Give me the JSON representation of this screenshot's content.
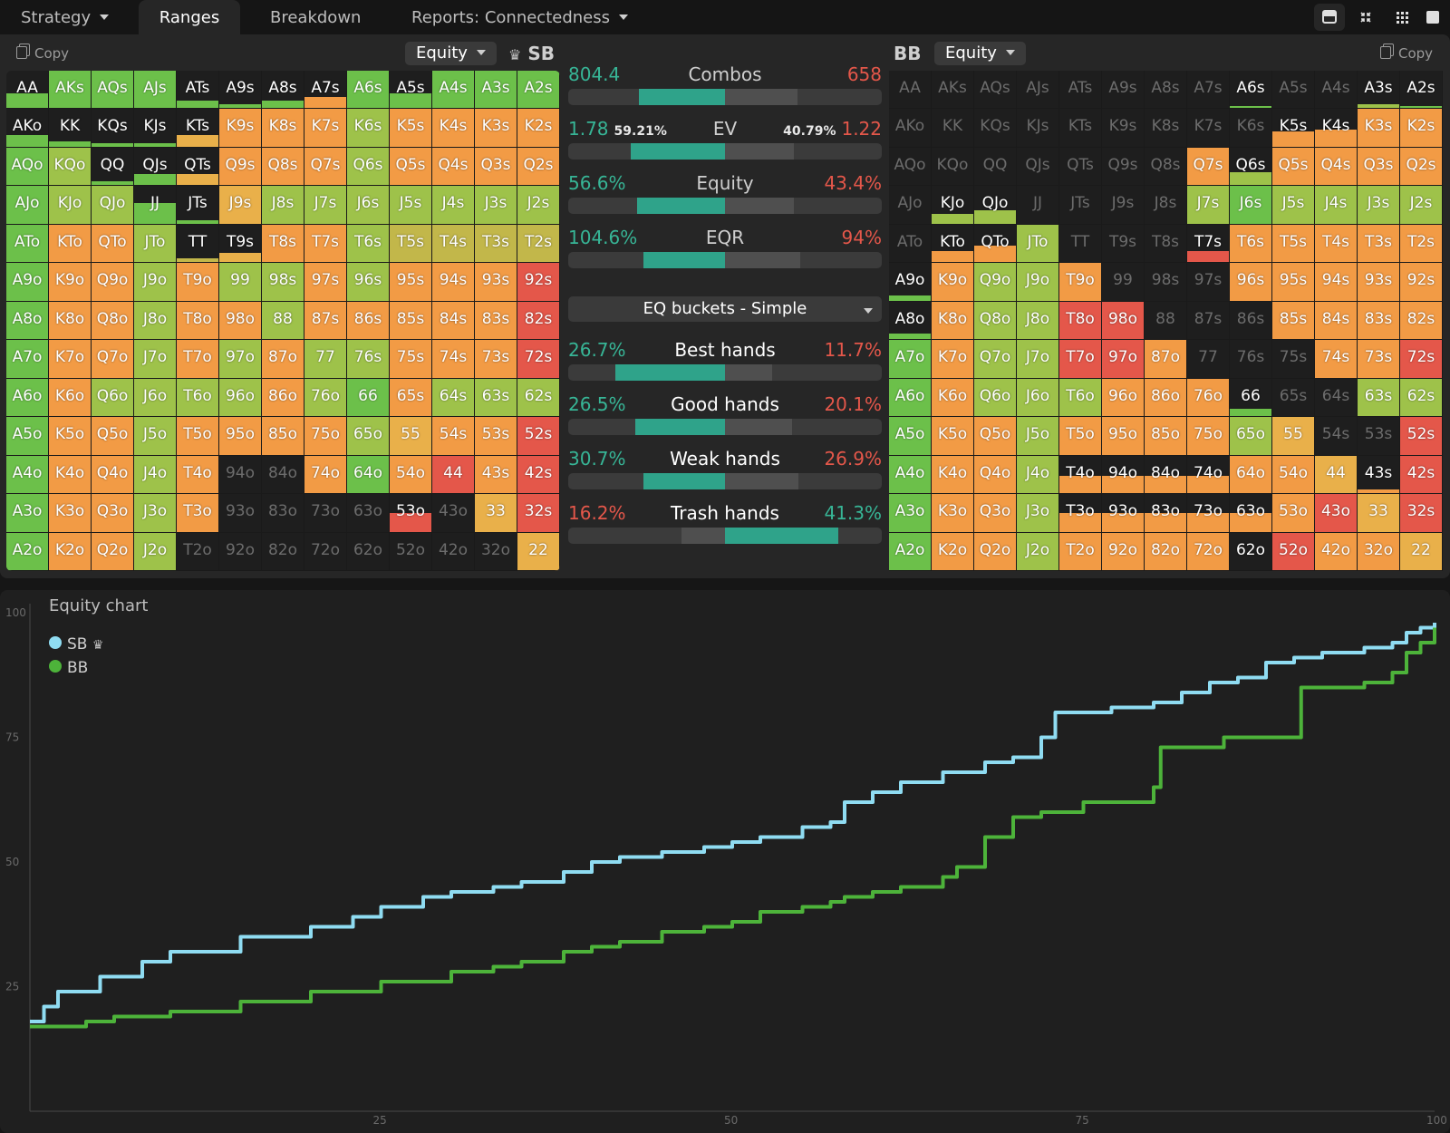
{
  "tabs": [
    {
      "label": "Strategy",
      "dropdown": true
    },
    {
      "label": "Ranges",
      "active": true
    },
    {
      "label": "Breakdown"
    },
    {
      "label": "Reports: Connectedness",
      "dropdown": true
    }
  ],
  "layout_icons": [
    "single-panel-icon",
    "split-panel-icon",
    "grid-view-icon",
    "fullscreen-icon"
  ],
  "left_panel": {
    "copy_label": "Copy",
    "dropdown": "Equity",
    "player": "SB",
    "crown": "♛"
  },
  "right_panel": {
    "copy_label": "Copy",
    "dropdown": "Equity",
    "player": "BB"
  },
  "colors": {
    "green": "#6cc04a",
    "lime": "#9ec24a",
    "olive": "#c2b74a",
    "yellow": "#e9b04a",
    "orange": "#f29b45",
    "deep_orange": "#ee7a3f",
    "red": "#e4574a",
    "teal": "#2fa38a",
    "sb_line": "#8fdcf2",
    "bb_line": "#4db33a"
  },
  "hands": [
    [
      "AA",
      "AKs",
      "AQs",
      "AJs",
      "ATs",
      "A9s",
      "A8s",
      "A7s",
      "A6s",
      "A5s",
      "A4s",
      "A3s",
      "A2s"
    ],
    [
      "AKo",
      "KK",
      "KQs",
      "KJs",
      "KTs",
      "K9s",
      "K8s",
      "K7s",
      "K6s",
      "K5s",
      "K4s",
      "K3s",
      "K2s"
    ],
    [
      "AQo",
      "KQo",
      "QQ",
      "QJs",
      "QTs",
      "Q9s",
      "Q8s",
      "Q7s",
      "Q6s",
      "Q5s",
      "Q4s",
      "Q3s",
      "Q2s"
    ],
    [
      "AJo",
      "KJo",
      "QJo",
      "JJ",
      "JTs",
      "J9s",
      "J8s",
      "J7s",
      "J6s",
      "J5s",
      "J4s",
      "J3s",
      "J2s"
    ],
    [
      "ATo",
      "KTo",
      "QTo",
      "JTo",
      "TT",
      "T9s",
      "T8s",
      "T7s",
      "T6s",
      "T5s",
      "T4s",
      "T3s",
      "T2s"
    ],
    [
      "A9o",
      "K9o",
      "Q9o",
      "J9o",
      "T9o",
      "99",
      "98s",
      "97s",
      "96s",
      "95s",
      "94s",
      "93s",
      "92s"
    ],
    [
      "A8o",
      "K8o",
      "Q8o",
      "J8o",
      "T8o",
      "98o",
      "88",
      "87s",
      "86s",
      "85s",
      "84s",
      "83s",
      "82s"
    ],
    [
      "A7o",
      "K7o",
      "Q7o",
      "J7o",
      "T7o",
      "97o",
      "87o",
      "77",
      "76s",
      "75s",
      "74s",
      "73s",
      "72s"
    ],
    [
      "A6o",
      "K6o",
      "Q6o",
      "J6o",
      "T6o",
      "96o",
      "86o",
      "76o",
      "66",
      "65s",
      "64s",
      "63s",
      "62s"
    ],
    [
      "A5o",
      "K5o",
      "Q5o",
      "J5o",
      "T5o",
      "95o",
      "85o",
      "75o",
      "65o",
      "55",
      "54s",
      "53s",
      "52s"
    ],
    [
      "A4o",
      "K4o",
      "Q4o",
      "J4o",
      "T4o",
      "94o",
      "84o",
      "74o",
      "64o",
      "54o",
      "44",
      "43s",
      "42s"
    ],
    [
      "A3o",
      "K3o",
      "Q3o",
      "J3o",
      "T3o",
      "93o",
      "83o",
      "73o",
      "63o",
      "53o",
      "43o",
      "33",
      "32s"
    ],
    [
      "A2o",
      "K2o",
      "Q2o",
      "J2o",
      "T2o",
      "92o",
      "82o",
      "72o",
      "62o",
      "52o",
      "42o",
      "32o",
      "22"
    ]
  ],
  "sb_grid": {
    "colors": [
      "GGGGDDDDGGGGG",
      "GDDDYOOOLOOOO",
      "GLDDYOOOLOOOO",
      "GLLGDYLLLLLLL",
      "GOOLDDOOLDDDD",
      "GOOLOLLOLOOOR",
      "GOOLOOLOOOOOR",
      "GOOLOLOLLOOOR",
      "GOLLLLOLGOLLL",
      "GOOLOOOOLYOOR",
      "GOOLODDODOROR",
      "GOOLODDDDRDYR",
      "GOOLDDDDDDDDY"
    ],
    "fills": [
      [
        0.4,
        1,
        1,
        1,
        0.2,
        0.1,
        0.2,
        0.3,
        1,
        0.4,
        1,
        1,
        1
      ],
      [
        0.3,
        0.15,
        0.1,
        0.1,
        0.3,
        1,
        1,
        1,
        1,
        1,
        1,
        1,
        1
      ],
      [
        1,
        1,
        0.1,
        0.3,
        0.3,
        1,
        1,
        1,
        1,
        1,
        1,
        1,
        1
      ],
      [
        1,
        1,
        1,
        0.55,
        0.1,
        1,
        1,
        1,
        1,
        1,
        1,
        1,
        1
      ],
      [
        1,
        1,
        1,
        1,
        0.1,
        0.25,
        1,
        1,
        1,
        1,
        1,
        1,
        1
      ],
      [
        1,
        1,
        1,
        1,
        1,
        1,
        1,
        1,
        1,
        1,
        1,
        1,
        1
      ],
      [
        1,
        1,
        1,
        1,
        1,
        1,
        1,
        1,
        1,
        1,
        1,
        1,
        1
      ],
      [
        1,
        1,
        1,
        1,
        1,
        1,
        1,
        1,
        1,
        1,
        1,
        1,
        1
      ],
      [
        1,
        1,
        1,
        1,
        1,
        1,
        1,
        1,
        1,
        1,
        1,
        1,
        1
      ],
      [
        1,
        1,
        1,
        1,
        1,
        1,
        1,
        1,
        1,
        1,
        1,
        1,
        1
      ],
      [
        1,
        1,
        1,
        1,
        1,
        0,
        0,
        1,
        1,
        1,
        1,
        1,
        1
      ],
      [
        1,
        1,
        1,
        1,
        1,
        0,
        0,
        0,
        0,
        0.5,
        0,
        1,
        1
      ],
      [
        1,
        1,
        1,
        1,
        0,
        0,
        0,
        0,
        0,
        0,
        0,
        0,
        1
      ]
    ]
  },
  "bb_grid": {
    "colors": [
      "DDDDDDDDDDDLG",
      "DDDDDDDDDOOOO",
      "DDDDDDDOLOOOO",
      "DLLDDDDLGLLLL",
      "DOOLDDDROOOOO",
      "GOLLODDDOOOOO",
      "GOLLRRDDDOOOO",
      "GOLLRRODDDOOR",
      "GOLLLOOOGDDLL",
      "GOOLOOOOLYDDR",
      "GOOLOOOOOOYDR",
      "GOOLOOOOOORYR",
      "GOOLOOOODROOY"
    ],
    "fills": [
      [
        0,
        0,
        0,
        0,
        0,
        0,
        0,
        0,
        0.05,
        0,
        0,
        0.1,
        0.05
      ],
      [
        0,
        0,
        0,
        0,
        0,
        0,
        0,
        0,
        0,
        0.4,
        0.45,
        1,
        1
      ],
      [
        0,
        0,
        0,
        0,
        0,
        0,
        0,
        1,
        0.35,
        1,
        1,
        1,
        1
      ],
      [
        0,
        0.25,
        0.35,
        0,
        0,
        0,
        0,
        1,
        1,
        1,
        1,
        1,
        1
      ],
      [
        0,
        0.3,
        0.45,
        1,
        0,
        0,
        0,
        0.3,
        1,
        1,
        1,
        1,
        1
      ],
      [
        0.15,
        1,
        1,
        1,
        1,
        0,
        0,
        0,
        1,
        1,
        1,
        1,
        1
      ],
      [
        0.15,
        1,
        1,
        1,
        1,
        1,
        0,
        0,
        0,
        1,
        1,
        1,
        1
      ],
      [
        1,
        1,
        1,
        1,
        1,
        1,
        1,
        0,
        0,
        0,
        1,
        1,
        1
      ],
      [
        1,
        1,
        1,
        1,
        1,
        1,
        1,
        1,
        0.2,
        0,
        0,
        1,
        1
      ],
      [
        1,
        1,
        1,
        1,
        1,
        1,
        1,
        1,
        1,
        1,
        0,
        0,
        1
      ],
      [
        1,
        1,
        1,
        1,
        0.45,
        0.45,
        0.45,
        0.45,
        1,
        1,
        1,
        0.1,
        1
      ],
      [
        1,
        1,
        1,
        1,
        0.5,
        0.5,
        0.5,
        0.5,
        0.5,
        1,
        1,
        1,
        1
      ],
      [
        1,
        1,
        1,
        1,
        1,
        1,
        1,
        1,
        1,
        1,
        1,
        1,
        1
      ]
    ]
  },
  "stats": [
    {
      "center": "Combos",
      "left": "804.4",
      "right": "658",
      "fill_from": 0.225,
      "fill_to": 0.5,
      "bg_to": 0.73
    },
    {
      "center": "EV",
      "left": "1.78",
      "left_pct": "59.21%",
      "right": "1.22",
      "right_pct": "40.79%",
      "fill_from": 0.2,
      "fill_to": 0.5,
      "bg_to": 0.72
    },
    {
      "center": "Equity",
      "left": "56.6%",
      "right": "43.4%",
      "fill_from": 0.22,
      "fill_to": 0.5,
      "bg_to": 0.72
    },
    {
      "center": "EQR",
      "left": "104.6%",
      "right": "94%",
      "fill_from": 0.24,
      "fill_to": 0.5,
      "bg_to": 0.74
    }
  ],
  "bucket_dropdown": "EQ buckets - Simple",
  "buckets": [
    {
      "center": "Best hands",
      "left": "26.7%",
      "right": "11.7%",
      "left_color": "teal",
      "right_color": "red",
      "fill_from": 0.15,
      "fill_to": 0.5,
      "bg_to": 0.65
    },
    {
      "center": "Good hands",
      "left": "26.5%",
      "right": "20.1%",
      "left_color": "teal",
      "right_color": "red",
      "fill_from": 0.215,
      "fill_to": 0.5,
      "bg_to": 0.715
    },
    {
      "center": "Weak hands",
      "left": "30.7%",
      "right": "26.9%",
      "left_color": "teal",
      "right_color": "red",
      "fill_from": 0.24,
      "fill_to": 0.5,
      "bg_to": 0.735
    },
    {
      "center": "Trash hands",
      "left": "16.2%",
      "right": "41.3%",
      "left_color": "red",
      "right_color": "teal",
      "fill_from": 0.5,
      "fill_to": 0.86,
      "bg_from": 0.36
    }
  ],
  "chart_data": {
    "type": "line",
    "title": "Equity chart",
    "xlabel": "",
    "ylabel": "",
    "xlim": [
      0,
      100
    ],
    "ylim": [
      0,
      100
    ],
    "x_ticks": [
      25,
      50,
      75,
      100
    ],
    "y_ticks": [
      25,
      50,
      75,
      100
    ],
    "grid": false,
    "legend": "top-left",
    "series": [
      {
        "name": "SB",
        "crown": "♛",
        "color": "#8fdcf2",
        "x": [
          0,
          1,
          2,
          5,
          8,
          10,
          15,
          20,
          23,
          25,
          28,
          30,
          33,
          35,
          38,
          40,
          42,
          45,
          48,
          50,
          52,
          55,
          57,
          58,
          60,
          62,
          65,
          68,
          70,
          72,
          73,
          75,
          77,
          80,
          82,
          84,
          86,
          88,
          90,
          92,
          95,
          97,
          98,
          99,
          100
        ],
        "y": [
          18,
          21,
          24,
          27,
          30,
          32,
          35,
          37,
          39,
          41,
          43,
          44,
          45,
          46,
          48,
          50,
          51,
          52,
          53,
          54,
          55,
          57,
          58,
          62,
          64,
          66,
          68,
          70,
          71,
          75,
          80,
          80,
          81,
          82,
          84,
          86,
          87,
          90,
          91,
          92,
          93,
          94,
          96,
          97,
          98
        ]
      },
      {
        "name": "BB",
        "color": "#4db33a",
        "x": [
          0,
          4,
          6,
          10,
          15,
          20,
          25,
          30,
          33,
          35,
          38,
          40,
          42,
          45,
          48,
          50,
          52,
          55,
          57,
          58,
          60,
          62,
          65,
          66,
          68,
          70,
          72,
          75,
          80,
          80.5,
          85,
          90,
          90.5,
          95,
          97,
          98,
          99,
          100
        ],
        "y": [
          17,
          18,
          19,
          20,
          22,
          24,
          26,
          28,
          29,
          30,
          32,
          33,
          34,
          36,
          37,
          38,
          40,
          41,
          42,
          43,
          44,
          45,
          47,
          49,
          55,
          59,
          60,
          62,
          65,
          73,
          75,
          75,
          85,
          86,
          88,
          92,
          94,
          97
        ]
      }
    ]
  }
}
